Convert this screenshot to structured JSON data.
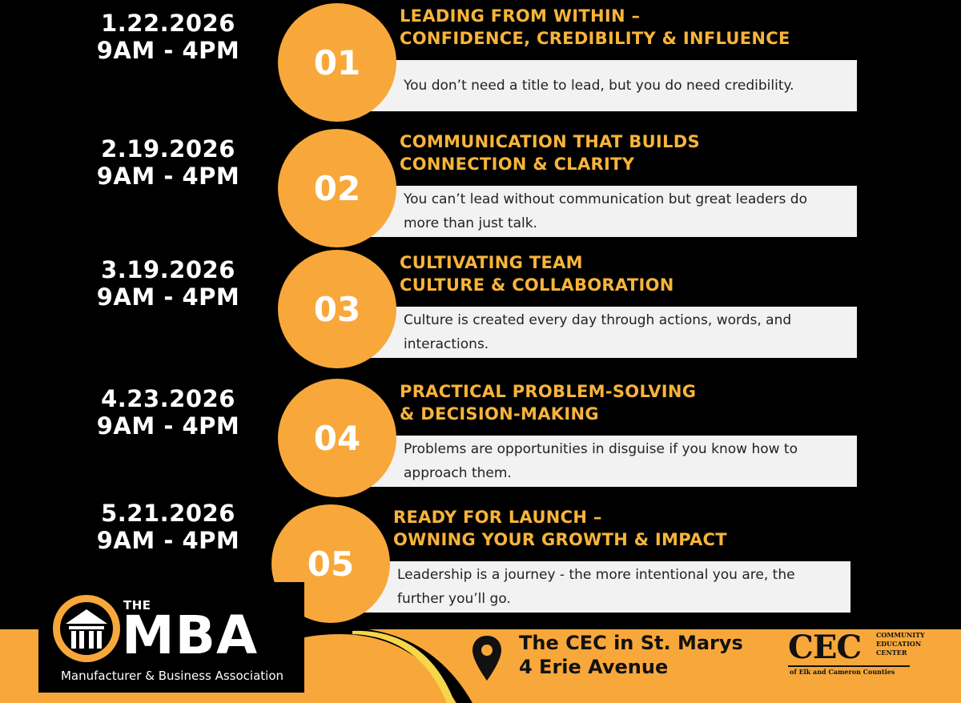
{
  "sessions": [
    {
      "date": "1.22.2026",
      "time": "9AM - 4PM",
      "number": "01",
      "title_line1": "LEADING FROM WITHIN –",
      "title_line2": "CONFIDENCE, CREDIBILITY & INFLUENCE",
      "description": "You don’t need a title to lead, but you do need credibility."
    },
    {
      "date": "2.19.2026",
      "time": "9AM - 4PM",
      "number": "02",
      "title_line1": "COMMUNICATION THAT BUILDS",
      "title_line2": "CONNECTION & CLARITY",
      "description": "You can’t lead without communication but great leaders do more than just talk."
    },
    {
      "date": "3.19.2026",
      "time": "9AM - 4PM",
      "number": "03",
      "title_line1": "CULTIVATING TEAM",
      "title_line2": "CULTURE & COLLABORATION",
      "description": "Culture is created every day through actions, words, and interactions."
    },
    {
      "date": "4.23.2026",
      "time": "9AM - 4PM",
      "number": "04",
      "title_line1": "PRACTICAL PROBLEM-SOLVING",
      "title_line2": "& DECISION-MAKING",
      "description": "Problems are opportunities in disguise if you know how to approach them."
    },
    {
      "date": "5.21.2026",
      "time": "9AM - 4PM",
      "number": "05",
      "title_line1": "READY FOR LAUNCH –",
      "title_line2": "OWNING YOUR GROWTH & IMPACT",
      "description": "Leadership is a journey - the more intentional you are, the further you’ll go."
    }
  ],
  "footer": {
    "mba_the": "THE",
    "mba_word": "MBA",
    "mba_subtitle": "Manufacturer & Business Association",
    "location_line1": "The CEC in St. Marys",
    "location_line2": "4 Erie Avenue",
    "cec_letters": "CEC",
    "cec_side_1": "COMMUNITY",
    "cec_side_2": "EDUCATION",
    "cec_side_3": "CENTER",
    "cec_bottom": "of Elk and Cameron Counties"
  },
  "colors": {
    "accent": "#f8a83a",
    "title": "#f8b43a",
    "background": "#000000",
    "box": "#f2f2f2"
  },
  "icons": [
    "mba-logo-icon",
    "location-pin-icon"
  ]
}
